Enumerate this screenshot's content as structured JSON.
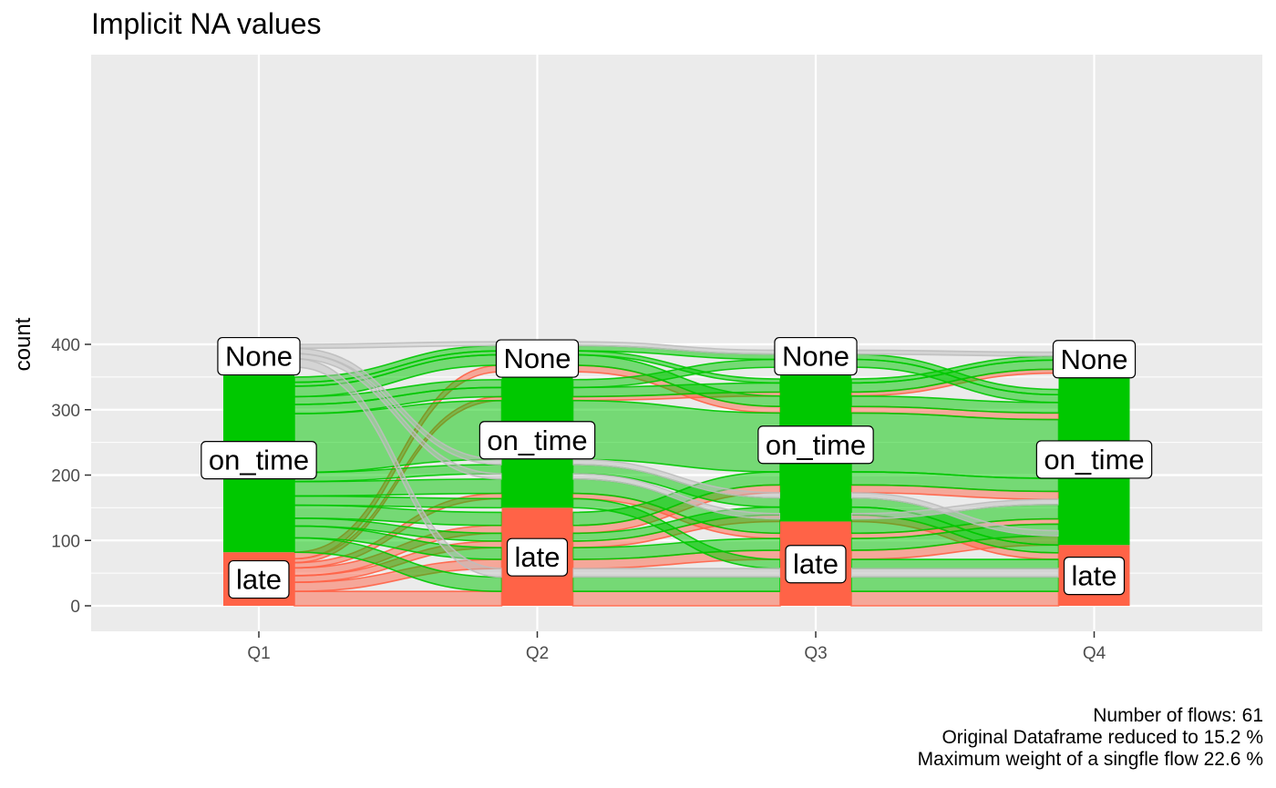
{
  "chart_data": {
    "type": "alluvial",
    "title": "Implicit NA values",
    "xlabel": "",
    "ylabel": "count",
    "ylim": [
      0,
      420
    ],
    "y_ticks": [
      0,
      100,
      200,
      300,
      400
    ],
    "categories": [
      "Q1",
      "Q2",
      "Q3",
      "Q4"
    ],
    "grid": true,
    "legend": "none",
    "strata_order_bottom_to_top": [
      "late",
      "on_time",
      "None"
    ],
    "colors": {
      "late": "#FF6347",
      "on_time": "#00C800",
      "None": "#BEBEBE",
      "panel": "#EBEBEB",
      "grid": "#FFFFFF"
    },
    "stratum_counts": {
      "Q1": {
        "late": 82,
        "on_time": 283,
        "None": 35
      },
      "Q2": {
        "late": 150,
        "on_time": 208,
        "None": 42
      },
      "Q3": {
        "late": 129,
        "on_time": 236,
        "None": 35
      },
      "Q4": {
        "late": 93,
        "on_time": 263,
        "None": 44
      }
    },
    "flows": [
      {
        "path": [
          "late",
          "late",
          "late",
          "late"
        ],
        "value": 22
      },
      {
        "path": [
          "late",
          "late",
          "late",
          "on_time"
        ],
        "value": 14
      },
      {
        "path": [
          "late",
          "late",
          "on_time",
          "late"
        ],
        "value": 10
      },
      {
        "path": [
          "late",
          "late",
          "on_time",
          "on_time"
        ],
        "value": 12
      },
      {
        "path": [
          "late",
          "on_time",
          "late",
          "on_time"
        ],
        "value": 8
      },
      {
        "path": [
          "late",
          "on_time",
          "on_time",
          "None"
        ],
        "value": 6
      },
      {
        "path": [
          "late",
          "None",
          "on_time",
          "on_time"
        ],
        "value": 10
      },
      {
        "path": [
          "on_time",
          "late",
          "late",
          "late"
        ],
        "value": 22
      },
      {
        "path": [
          "on_time",
          "late",
          "late",
          "on_time"
        ],
        "value": 18
      },
      {
        "path": [
          "on_time",
          "late",
          "on_time",
          "late"
        ],
        "value": 12
      },
      {
        "path": [
          "on_time",
          "late",
          "on_time",
          "on_time"
        ],
        "value": 20
      },
      {
        "path": [
          "on_time",
          "on_time",
          "late",
          "late"
        ],
        "value": 14
      },
      {
        "path": [
          "on_time",
          "on_time",
          "late",
          "on_time"
        ],
        "value": 22
      },
      {
        "path": [
          "on_time",
          "on_time",
          "on_time",
          "late"
        ],
        "value": 14
      },
      {
        "path": [
          "on_time",
          "on_time",
          "on_time",
          "on_time"
        ],
        "value": 90
      },
      {
        "path": [
          "on_time",
          "on_time",
          "on_time",
          "None"
        ],
        "value": 14
      },
      {
        "path": [
          "on_time",
          "on_time",
          "None",
          "on_time"
        ],
        "value": 12
      },
      {
        "path": [
          "on_time",
          "None",
          "on_time",
          "on_time"
        ],
        "value": 16
      },
      {
        "path": [
          "on_time",
          "None",
          "None",
          "on_time"
        ],
        "value": 8
      },
      {
        "path": [
          "on_time",
          "None",
          "on_time",
          "None"
        ],
        "value": 6
      },
      {
        "path": [
          "None",
          "late",
          "late",
          "late"
        ],
        "value": 13
      },
      {
        "path": [
          "None",
          "on_time",
          "late",
          "on_time"
        ],
        "value": 8
      },
      {
        "path": [
          "None",
          "on_time",
          "on_time",
          "late"
        ],
        "value": 8
      },
      {
        "path": [
          "None",
          "None",
          "None",
          "None"
        ],
        "value": 6
      }
    ]
  },
  "captions": {
    "line1": "Number of flows: 61",
    "line2": "Original Dataframe reduced to 15.2 %",
    "line3": "Maximum weight of a singfle flow 22.6 %"
  }
}
